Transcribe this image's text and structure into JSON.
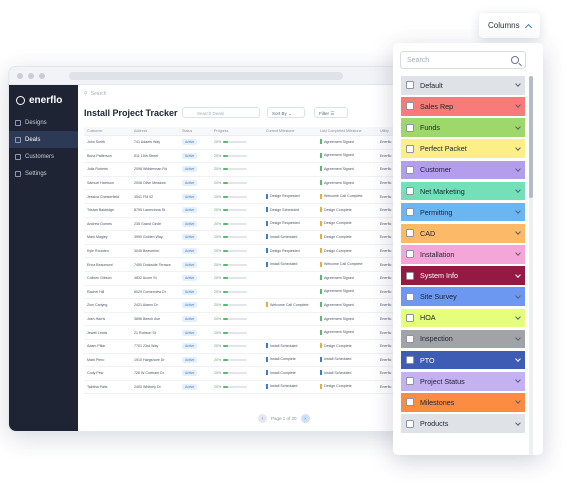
{
  "brand": {
    "name": "enerflo"
  },
  "app": {
    "top_search_placeholder": "Search",
    "page_title": "Install Project Tracker",
    "search_placeholder": "Search Deals",
    "sort_label": "Sort By",
    "filter_label": "Filter",
    "pagination_label": "Page 1 of 20"
  },
  "sidebar": {
    "items": [
      {
        "label": "Designs",
        "icon": "pencil-icon",
        "active": false
      },
      {
        "label": "Deals",
        "icon": "dollar-icon",
        "active": true
      },
      {
        "label": "Customers",
        "icon": "users-icon",
        "active": false
      },
      {
        "label": "Settings",
        "icon": "gear-icon",
        "active": false
      }
    ]
  },
  "table": {
    "headers": [
      "Customer",
      "Address",
      "Status",
      "Progress",
      "Current Milestone",
      "Last Completed Milestone",
      "Utility"
    ],
    "rows": [
      {
        "customer": "John Smith",
        "address": "741 Adams Way",
        "status": "Active",
        "progress": 0.2,
        "pct": "20%",
        "current": "",
        "current_color": "",
        "last": "Agreement Signed",
        "last_color": "#5cb86f",
        "utility": "Enerflo"
      },
      {
        "customer": "Bona Patterson",
        "address": "511 15th Street",
        "status": "Active",
        "progress": 0.2,
        "pct": "20%",
        "current": "",
        "current_color": "",
        "last": "Agreement Signed",
        "last_color": "#5cb86f",
        "utility": "Enerflo"
      },
      {
        "customer": "Julia Roberts",
        "address": "2098 Widderman Rd",
        "status": "Active",
        "progress": 0.2,
        "pct": "20%",
        "current": "",
        "current_color": "",
        "last": "Agreement Signed",
        "last_color": "#5cb86f",
        "utility": "Enerflo"
      },
      {
        "customer": "Samuel Harrison",
        "address": "2008 Olive Meadow",
        "status": "Active",
        "progress": 0.2,
        "pct": "20%",
        "current": "",
        "current_color": "",
        "last": "Agreement Signed",
        "last_color": "#5cb86f",
        "utility": "Enerflo"
      },
      {
        "customer": "Jessica Chesterfield",
        "address": "3541 FM 02",
        "status": "Active",
        "progress": 0.2,
        "pct": "20%",
        "current": "Design Requested",
        "current_color": "#3d7cc9",
        "last": "Welcome Call Complete",
        "last_color": "#f0a93b",
        "utility": "Enerflo"
      },
      {
        "customer": "Tristan Baldridge",
        "address": "8795 Lamecinna St",
        "status": "Active",
        "progress": 0.2,
        "pct": "20%",
        "current": "Design Scheduled",
        "current_color": "#3d7cc9",
        "last": "Design Complete",
        "last_color": "#f0a93b",
        "utility": "Enerflo"
      },
      {
        "customer": "Andrew Gomes",
        "address": "235 Grand Circle",
        "status": "Active",
        "progress": 0.2,
        "pct": "20%",
        "current": "Design Requested",
        "current_color": "#3d7cc9",
        "last": "Design Complete",
        "last_color": "#f0a93b",
        "utility": "Enerflo"
      },
      {
        "customer": "Mark Magley",
        "address": "3990 Golden Way",
        "status": "Active",
        "progress": 0.2,
        "pct": "20%",
        "current": "Install Scheduled",
        "current_color": "#3d7cc9",
        "last": "Design Complete",
        "last_color": "#f0a93b",
        "utility": "Enerflo"
      },
      {
        "customer": "Kyle Rourden",
        "address": "3045 Beaverton",
        "status": "Active",
        "progress": 0.2,
        "pct": "20%",
        "current": "Design Requested",
        "current_color": "#3d7cc9",
        "last": "Design Complete",
        "last_color": "#f0a93b",
        "utility": "Enerflo"
      },
      {
        "customer": "Erica Beaumont",
        "address": "7450 Dockside Terrace",
        "status": "Active",
        "progress": 0.2,
        "pct": "20%",
        "current": "Install Scheduled",
        "current_color": "#3d7cc9",
        "last": "Welcome Call Complete",
        "last_color": "#f0a93b",
        "utility": "Enerflo"
      },
      {
        "customer": "Colleen Gibson",
        "address": "4832 Acorn St",
        "status": "Active",
        "progress": 0.2,
        "pct": "20%",
        "current": "",
        "current_color": "",
        "last": "Agreement Signed",
        "last_color": "#5cb86f",
        "utility": "Enerflo"
      },
      {
        "customer": "Rachel Hill",
        "address": "6029 Cornerview Dr",
        "status": "Active",
        "progress": 0.2,
        "pct": "20%",
        "current": "",
        "current_color": "",
        "last": "Agreement Signed",
        "last_color": "#5cb86f",
        "utility": "Enerflo"
      },
      {
        "customer": "Zion Carlyng",
        "address": "2421 Alamo Dr",
        "status": "Active",
        "progress": 0.2,
        "pct": "20%",
        "current": "Welcome Call Complete",
        "current_color": "#f0a93b",
        "last": "Agreement Signed",
        "last_color": "#5cb86f",
        "utility": "Enerflo"
      },
      {
        "customer": "Josh Harris",
        "address": "3896 Beech Ave",
        "status": "Active",
        "progress": 0.2,
        "pct": "20%",
        "current": "",
        "current_color": "",
        "last": "Agreement Signed",
        "last_color": "#5cb86f",
        "utility": "Enerflo"
      },
      {
        "customer": "Jewell Lewis",
        "address": "21 Robson St",
        "status": "Active",
        "progress": 0.2,
        "pct": "20%",
        "current": "",
        "current_color": "",
        "last": "Agreement Signed",
        "last_color": "#5cb86f",
        "utility": "Enerflo"
      },
      {
        "customer": "Adam Pillar",
        "address": "7701 23rd Way",
        "status": "Active",
        "progress": 0.2,
        "pct": "20%",
        "current": "Install Scheduled",
        "current_color": "#3d7cc9",
        "last": "Design Complete",
        "last_color": "#f0a93b",
        "utility": "Enerflo"
      },
      {
        "customer": "Mark Piero",
        "address": "1910 Hargshore Dr",
        "status": "Active",
        "progress": 0.2,
        "pct": "20%",
        "current": "Install Complete",
        "current_color": "#3d7cc9",
        "last": "Install Scheduled",
        "last_color": "#3d7cc9",
        "utility": "Enerflo"
      },
      {
        "customer": "Cody Pew",
        "address": "726 W Cortham Dr",
        "status": "Active",
        "progress": 0.2,
        "pct": "20%",
        "current": "Install Complete",
        "current_color": "#3d7cc9",
        "last": "Install Scheduled",
        "last_color": "#3d7cc9",
        "utility": "Enerflo"
      },
      {
        "customer": "Tabitha Palis",
        "address": "2400 Whitney Dr",
        "status": "Active",
        "progress": 0.2,
        "pct": "20%",
        "current": "Install Scheduled",
        "current_color": "#3d7cc9",
        "last": "Design Complete",
        "last_color": "#f0a93b",
        "utility": "Enerflo"
      }
    ]
  },
  "columns_menu": {
    "button_label": "Columns",
    "search_placeholder": "Search",
    "groups": [
      {
        "label": "Default",
        "color": "#dfe2e7",
        "dark": false
      },
      {
        "label": "Sales Rep",
        "color": "#f87a79",
        "dark": false
      },
      {
        "label": "Funds",
        "color": "#9ed76b",
        "dark": false
      },
      {
        "label": "Perfect Packet",
        "color": "#fbef86",
        "dark": false
      },
      {
        "label": "Customer",
        "color": "#b59ded",
        "dark": false
      },
      {
        "label": "Net Marketing",
        "color": "#74e0ba",
        "dark": false
      },
      {
        "label": "Permitting",
        "color": "#6ab6f2",
        "dark": false
      },
      {
        "label": "CAD",
        "color": "#fcb968",
        "dark": false
      },
      {
        "label": "Installation",
        "color": "#f5a6d9",
        "dark": false
      },
      {
        "label": "System Info",
        "color": "#951a43",
        "dark": true
      },
      {
        "label": "Site Survey",
        "color": "#6c98f1",
        "dark": false
      },
      {
        "label": "HOA",
        "color": "#e5ff7a",
        "dark": false
      },
      {
        "label": "Inspection",
        "color": "#a1a3a7",
        "dark": false
      },
      {
        "label": "PTO",
        "color": "#3e5cb4",
        "dark": true
      },
      {
        "label": "Project Status",
        "color": "#c4b1f1",
        "dark": false
      },
      {
        "label": "Milestones",
        "color": "#fb8c41",
        "dark": false
      },
      {
        "label": "Products",
        "color": "#dfe2e7",
        "dark": false
      }
    ]
  }
}
